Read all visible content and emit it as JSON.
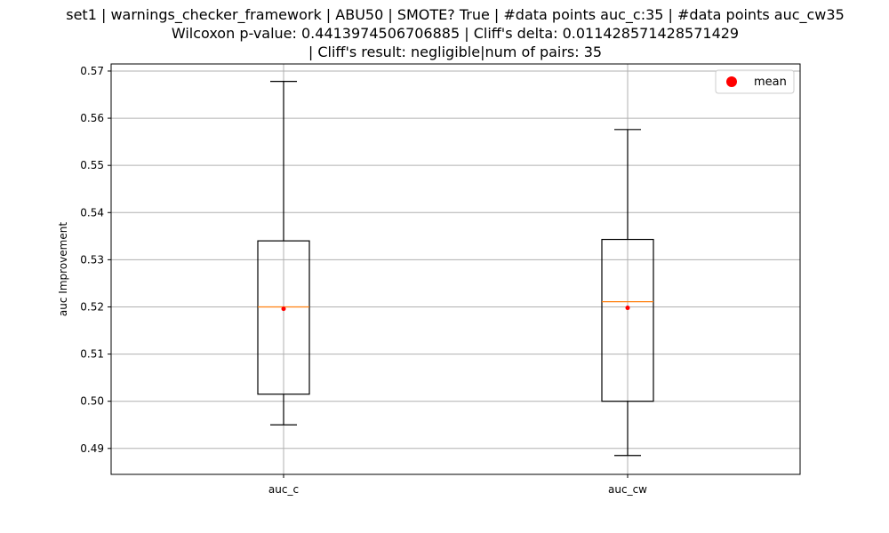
{
  "chart_data": {
    "type": "box",
    "title_lines": [
      "set1 | warnings_checker_framework | ABU50 | SMOTE? True | #data points auc_c:35 | #data points auc_cw35",
      "Wilcoxon p-value: 0.4413974506706885 | Cliff's delta: 0.011428571428571429",
      "| Cliff's result: negligible|num of pairs: 35"
    ],
    "xlabel": "",
    "ylabel": "auc Improvement",
    "ylim": [
      0.4845,
      0.5715
    ],
    "yticks": [
      "0.49",
      "0.50",
      "0.51",
      "0.52",
      "0.53",
      "0.54",
      "0.55",
      "0.56",
      "0.57"
    ],
    "ytick_values": [
      0.49,
      0.5,
      0.51,
      0.52,
      0.53,
      0.54,
      0.55,
      0.56,
      0.57
    ],
    "grid": true,
    "legend": {
      "placement": "top-right",
      "entries": [
        {
          "label": "mean",
          "color": "#ff0000"
        }
      ]
    },
    "categories": [
      "auc_c",
      "auc_cw"
    ],
    "boxes": [
      {
        "name": "auc_c",
        "whisker_low": 0.495,
        "q1": 0.5015,
        "median": 0.52,
        "q3": 0.534,
        "whisker_high": 0.5678,
        "mean": 0.5196
      },
      {
        "name": "auc_cw",
        "whisker_low": 0.4885,
        "q1": 0.5,
        "median": 0.5211,
        "q3": 0.5343,
        "whisker_high": 0.5576,
        "mean": 0.5198
      }
    ],
    "colors": {
      "box": "#000000",
      "median": "#ff7f0e",
      "mean": "#ff0000",
      "grid": "#b0b0b0"
    }
  }
}
